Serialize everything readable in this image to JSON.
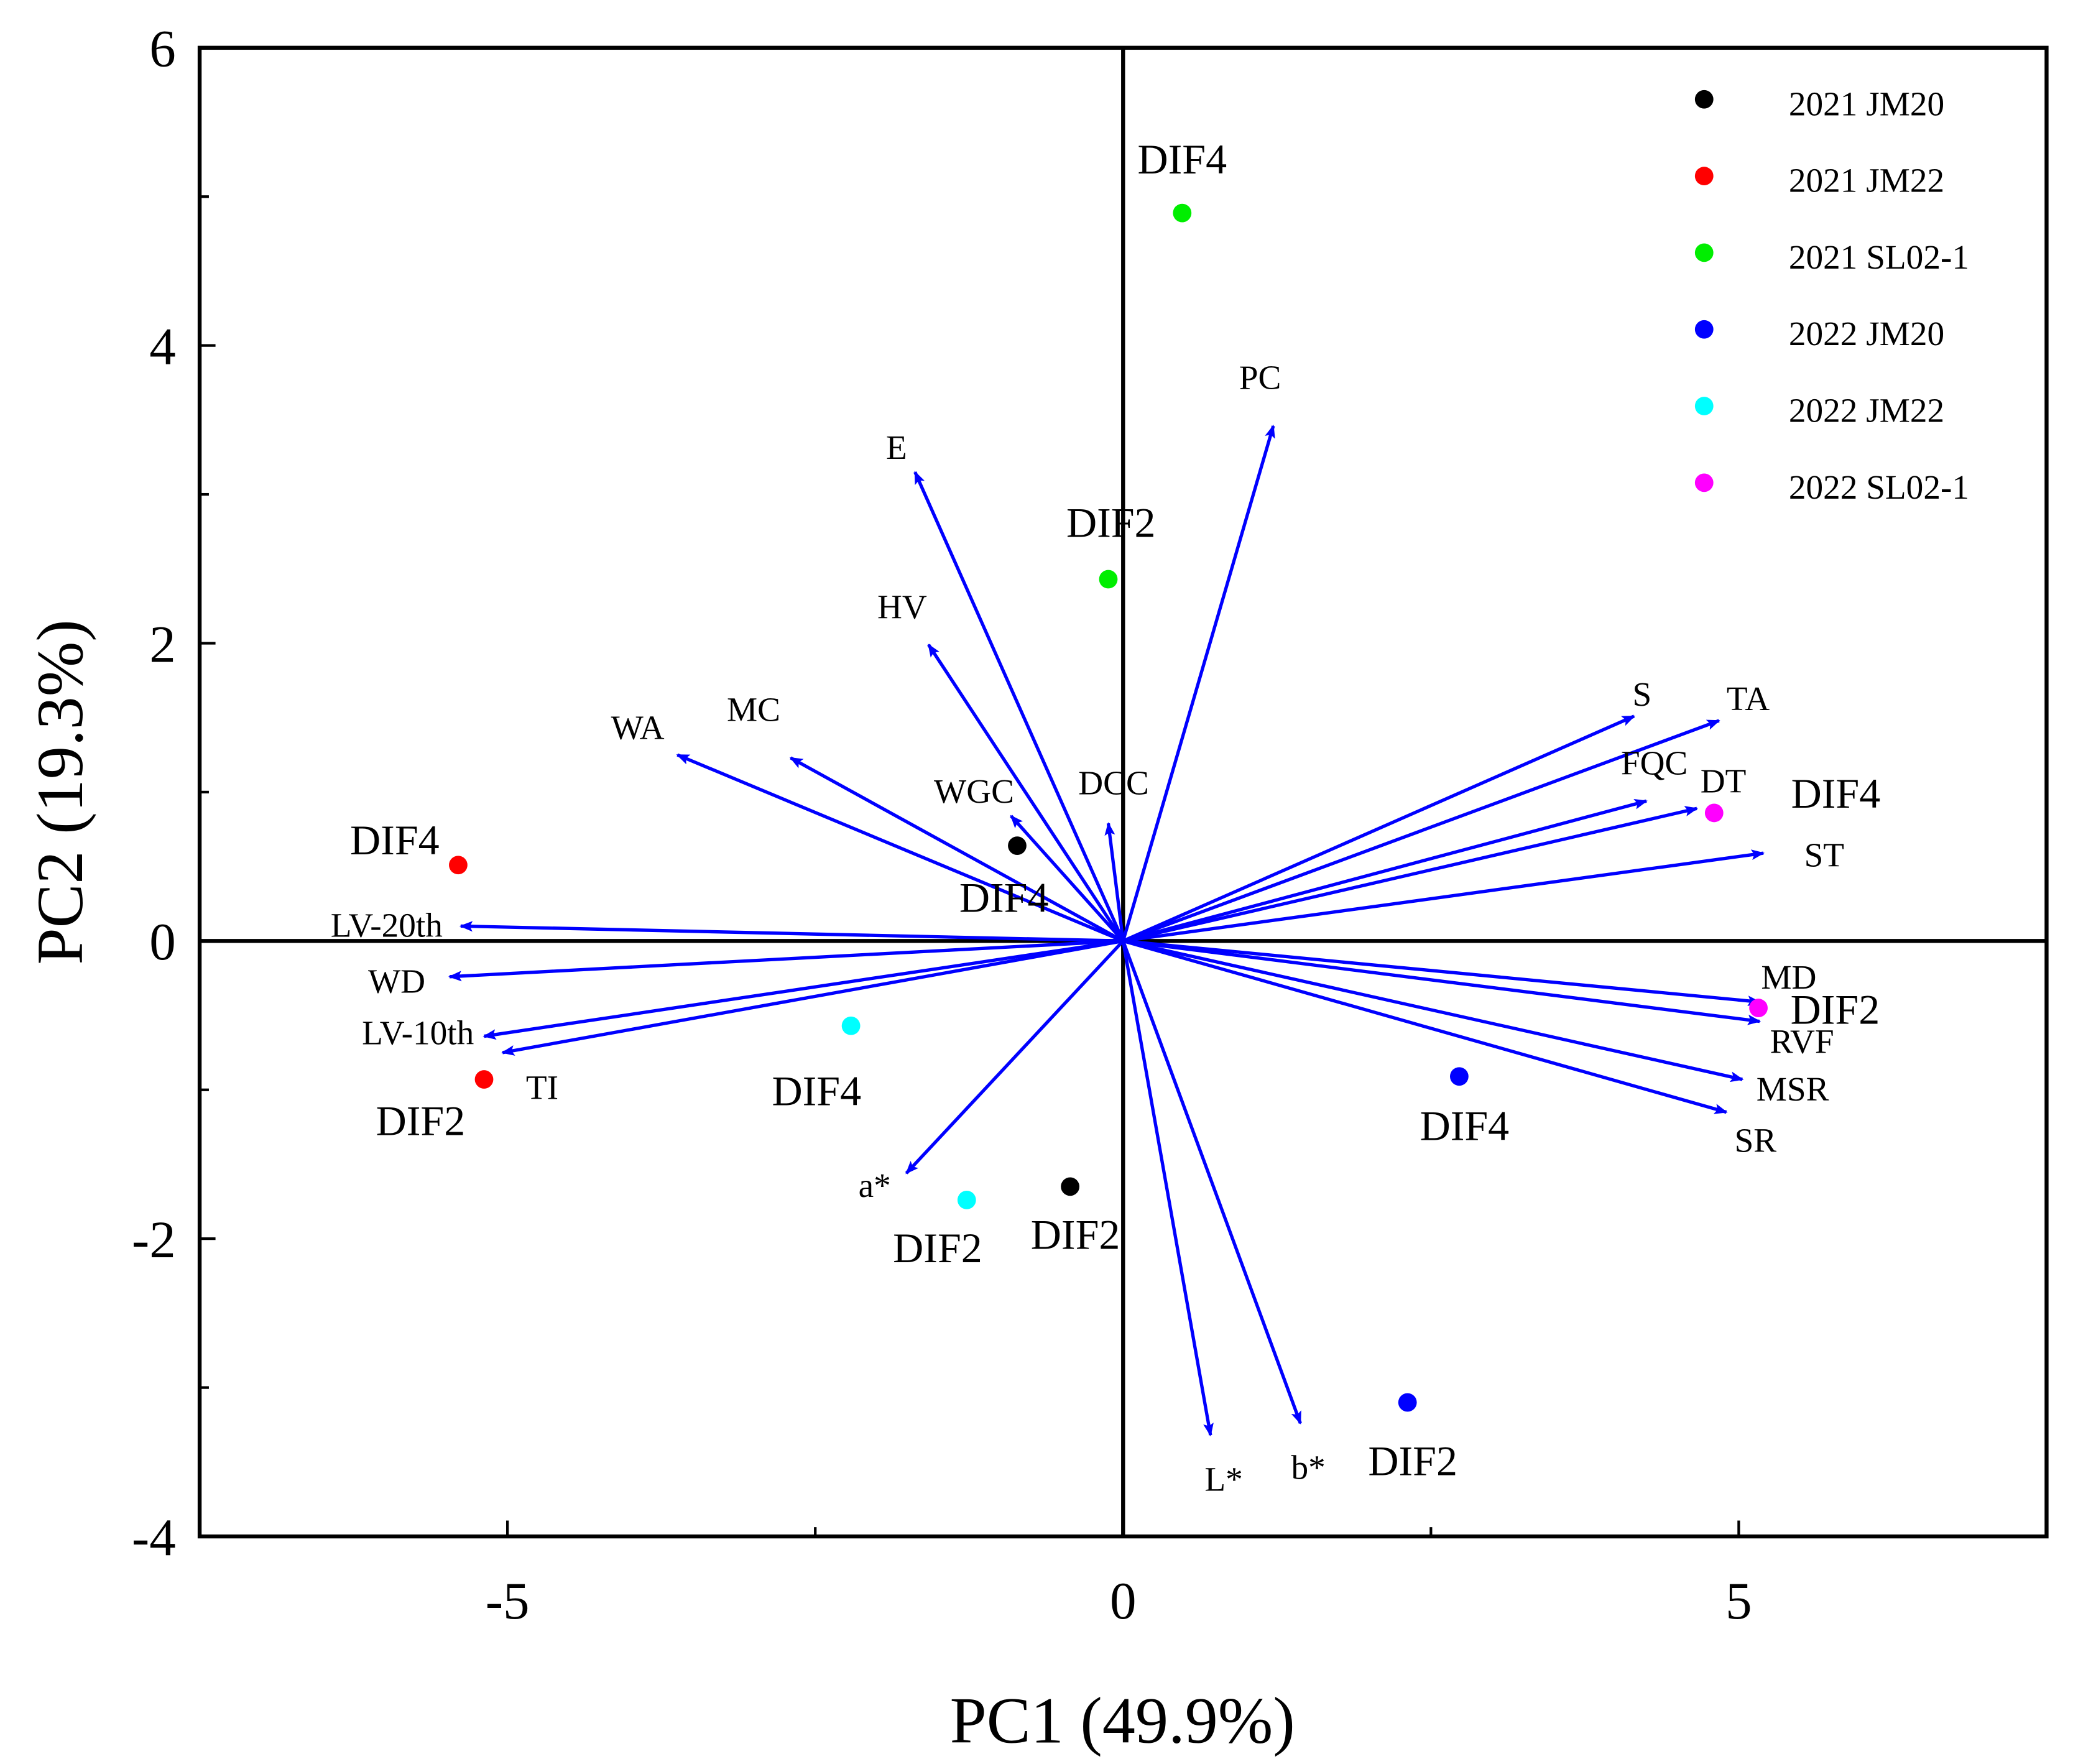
{
  "chart_data": {
    "type": "scatter",
    "subtype": "pca-biplot",
    "xlabel": "PC1 (49.9%)",
    "ylabel": "PC2 (19.3%)",
    "xlim": [
      -7.5,
      7.5
    ],
    "ylim": [
      -4,
      6
    ],
    "xticks": [
      -5,
      0,
      5
    ],
    "xtick_labels": [
      "-5",
      "0",
      "5"
    ],
    "yticks": [
      -4,
      -2,
      0,
      2,
      4,
      6
    ],
    "ytick_labels": [
      "-4",
      "-2",
      "0",
      "2",
      "4",
      "6"
    ],
    "grid": false,
    "legend_position": "top-right",
    "series": [
      {
        "name": "2021 JM20",
        "color": "#000000",
        "points": [
          {
            "x": -0.86,
            "y": 0.64,
            "label": "DIF4"
          },
          {
            "x": -0.43,
            "y": -1.65,
            "label": "DIF2"
          }
        ]
      },
      {
        "name": "2021 JM22",
        "color": "#ff0000",
        "points": [
          {
            "x": -5.4,
            "y": 0.51,
            "label": "DIF4"
          },
          {
            "x": -5.19,
            "y": -0.93,
            "label": "DIF2"
          }
        ]
      },
      {
        "name": "2021 SL02-1",
        "color": "#00ee00",
        "points": [
          {
            "x": 0.48,
            "y": 4.89,
            "label": "DIF4"
          },
          {
            "x": -0.12,
            "y": 2.43,
            "label": "DIF2"
          }
        ]
      },
      {
        "name": "2022 JM20",
        "color": "#0000ff",
        "points": [
          {
            "x": 2.73,
            "y": -0.91,
            "label": "DIF4"
          },
          {
            "x": 2.31,
            "y": -3.1,
            "label": "DIF2"
          }
        ]
      },
      {
        "name": "2022 JM22",
        "color": "#00ffff",
        "points": [
          {
            "x": -2.21,
            "y": -0.57,
            "label": "DIF4"
          },
          {
            "x": -1.27,
            "y": -1.74,
            "label": "DIF2"
          }
        ]
      },
      {
        "name": "2022 SL02-1",
        "color": "#ff00ff",
        "points": [
          {
            "x": 4.8,
            "y": 0.86,
            "label": "DIF4"
          },
          {
            "x": 5.16,
            "y": -0.45,
            "label": "DIF2"
          }
        ]
      }
    ],
    "loadings_color": "#0000ff",
    "loadings": [
      {
        "name": "PC",
        "x": 1.22,
        "y": 3.46
      },
      {
        "name": "E",
        "x": -1.69,
        "y": 3.15
      },
      {
        "name": "HV",
        "x": -1.58,
        "y": 1.99
      },
      {
        "name": "WA",
        "x": -3.62,
        "y": 1.25
      },
      {
        "name": "MC",
        "x": -2.7,
        "y": 1.23
      },
      {
        "name": "WGC",
        "x": -0.91,
        "y": 0.84
      },
      {
        "name": "DCC",
        "x": -0.12,
        "y": 0.79
      },
      {
        "name": "LV-20th",
        "x": -5.38,
        "y": 0.1
      },
      {
        "name": "WD",
        "x": -5.47,
        "y": -0.24
      },
      {
        "name": "LV-10th",
        "x": -5.19,
        "y": -0.64
      },
      {
        "name": "TI",
        "x": -5.04,
        "y": -0.75
      },
      {
        "name": "a*",
        "x": -1.76,
        "y": -1.56
      },
      {
        "name": "L*",
        "x": 0.71,
        "y": -3.32
      },
      {
        "name": "b*",
        "x": 1.44,
        "y": -3.24
      },
      {
        "name": "S",
        "x": 4.15,
        "y": 1.51
      },
      {
        "name": "TA",
        "x": 4.84,
        "y": 1.48
      },
      {
        "name": "FQC",
        "x": 4.25,
        "y": 0.94
      },
      {
        "name": "DT",
        "x": 4.66,
        "y": 0.89
      },
      {
        "name": "ST",
        "x": 5.2,
        "y": 0.59
      },
      {
        "name": "MD",
        "x": 5.17,
        "y": -0.41
      },
      {
        "name": "RVF",
        "x": 5.17,
        "y": -0.54
      },
      {
        "name": "MSR",
        "x": 5.03,
        "y": -0.93
      },
      {
        "name": "SR",
        "x": 4.9,
        "y": -1.15
      }
    ]
  }
}
